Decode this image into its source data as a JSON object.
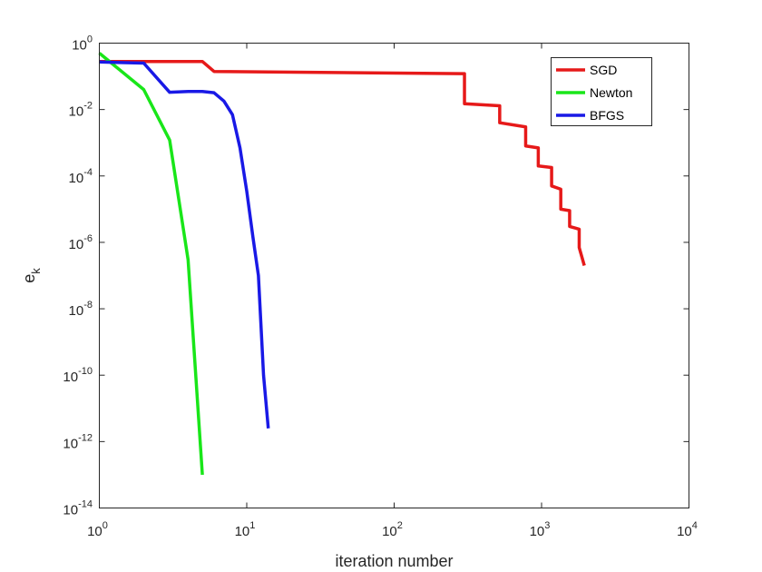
{
  "chart_data": {
    "type": "line",
    "xscale": "log",
    "yscale": "log",
    "xlim": [
      1,
      10000
    ],
    "ylim": [
      1e-14,
      1
    ],
    "xlabel": "iteration number",
    "ylabel_main": "e",
    "ylabel_sub": "k",
    "grid": false,
    "legend_position": "top-right",
    "x_ticks": [
      {
        "value": 1,
        "base": "10",
        "exp": "0"
      },
      {
        "value": 10,
        "base": "10",
        "exp": "1"
      },
      {
        "value": 100,
        "base": "10",
        "exp": "2"
      },
      {
        "value": 1000,
        "base": "10",
        "exp": "3"
      },
      {
        "value": 10000,
        "base": "10",
        "exp": "4"
      }
    ],
    "y_ticks": [
      {
        "value": 1,
        "base": "10",
        "exp": "0"
      },
      {
        "value": 0.01,
        "base": "10",
        "exp": "-2"
      },
      {
        "value": 0.0001,
        "base": "10",
        "exp": "-4"
      },
      {
        "value": 1e-06,
        "base": "10",
        "exp": "-6"
      },
      {
        "value": 1e-08,
        "base": "10",
        "exp": "-8"
      },
      {
        "value": 1e-10,
        "base": "10",
        "exp": "-10"
      },
      {
        "value": 1e-12,
        "base": "10",
        "exp": "-12"
      },
      {
        "value": 1e-14,
        "base": "10",
        "exp": "-14"
      }
    ],
    "series": [
      {
        "name": "SGD",
        "color": "#e61919",
        "x": [
          1,
          5,
          6,
          300,
          300,
          520,
          520,
          780,
          780,
          950,
          950,
          1170,
          1170,
          1350,
          1350,
          1550,
          1550,
          1800,
          1800,
          1950
        ],
        "y": [
          0.28,
          0.28,
          0.14,
          0.12,
          0.015,
          0.013,
          0.004,
          0.003,
          0.0008,
          0.0007,
          0.0002,
          0.00018,
          5e-05,
          4e-05,
          1e-05,
          9e-06,
          3e-06,
          2.5e-06,
          7e-07,
          2e-07
        ]
      },
      {
        "name": "Newton",
        "color": "#19e619",
        "x": [
          1,
          2,
          3,
          4,
          5
        ],
        "y": [
          0.5,
          0.04,
          0.0012,
          3e-07,
          1e-13
        ]
      },
      {
        "name": "BFGS",
        "color": "#1919e6",
        "x": [
          1,
          2,
          3,
          4,
          5,
          6,
          7,
          8,
          9,
          10,
          11,
          12,
          13,
          14
        ],
        "y": [
          0.27,
          0.25,
          0.033,
          0.035,
          0.035,
          0.032,
          0.018,
          0.007,
          0.0007,
          3.5e-05,
          1.5e-06,
          1e-07,
          1e-10,
          2.5e-12
        ]
      }
    ]
  }
}
